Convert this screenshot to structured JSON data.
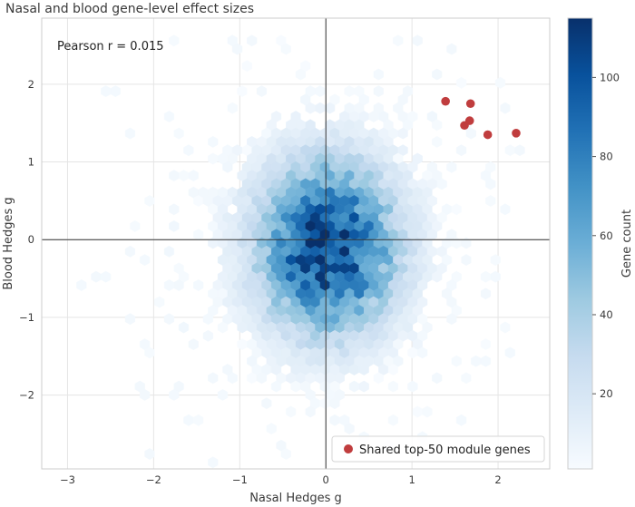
{
  "chart_data": {
    "type": "hexbin-scatter",
    "title": "Nasal and blood gene-level effect sizes",
    "xlabel": "Nasal Hedges g",
    "ylabel": "Blood Hedges g",
    "annotation": "Pearson r = 0.015",
    "xlim": [
      -3.3,
      2.6
    ],
    "ylim": [
      -2.95,
      2.85
    ],
    "xticks": [
      -3,
      -2,
      -1,
      0,
      1,
      2
    ],
    "xtick_labels": [
      "−3",
      "−2",
      "−1",
      "0",
      "1",
      "2"
    ],
    "yticks": [
      -2,
      -1,
      0,
      1,
      2
    ],
    "ytick_labels": [
      "−2",
      "−1",
      "0",
      "1",
      "2"
    ],
    "grid": true,
    "reference_lines": {
      "x": 0,
      "y": 0
    },
    "density": {
      "center_x": 0.02,
      "center_y": -0.1,
      "spread_x": 0.55,
      "spread_y": 0.75,
      "peak_count": 115
    },
    "colorbar": {
      "label": "Gene count",
      "min": 1,
      "max": 115,
      "ticks": [
        20,
        40,
        60,
        80,
        100
      ],
      "tick_labels": [
        "20",
        "40",
        "60",
        "80",
        "100"
      ],
      "colors": [
        "#f7fbff",
        "#deebf7",
        "#c6dbef",
        "#9ecae1",
        "#6baed6",
        "#4292c6",
        "#2171b5",
        "#08519c",
        "#08306b"
      ]
    },
    "series": [
      {
        "name": "Shared top-50 module genes",
        "color": "#c03d3e",
        "points": [
          {
            "x": 1.39,
            "y": 1.78
          },
          {
            "x": 1.68,
            "y": 1.75
          },
          {
            "x": 1.67,
            "y": 1.53
          },
          {
            "x": 1.61,
            "y": 1.47
          },
          {
            "x": 1.88,
            "y": 1.35
          },
          {
            "x": 2.21,
            "y": 1.37
          }
        ]
      }
    ],
    "legend": {
      "position": "lower-right"
    }
  }
}
